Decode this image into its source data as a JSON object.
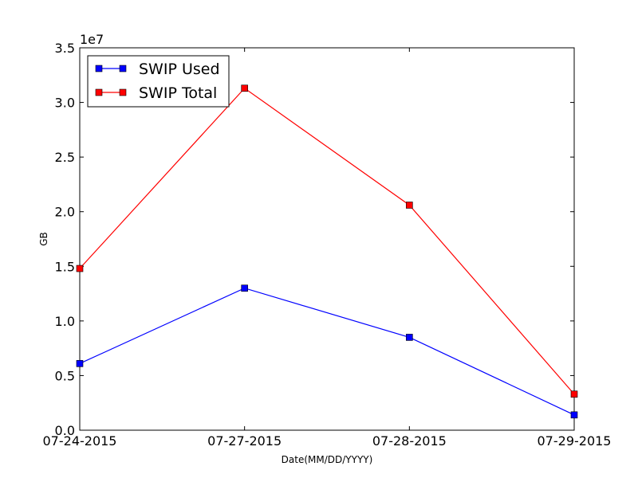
{
  "chart_data": {
    "type": "line",
    "categories": [
      "07-24-2015",
      "07-27-2015",
      "07-28-2015",
      "07-29-2015"
    ],
    "series": [
      {
        "name": "SWIP Used",
        "color": "#0000ff",
        "marker": "square",
        "values": [
          6100000,
          13000000,
          8500000,
          1400000
        ]
      },
      {
        "name": "SWIP Total",
        "color": "#ff0000",
        "marker": "square",
        "values": [
          14800000,
          31300000,
          20600000,
          3300000
        ]
      }
    ],
    "xlabel": "Date(MM/DD/YYYY)",
    "ylabel": "GB",
    "ylim": [
      0,
      35000000
    ],
    "yticks": [
      0,
      5000000,
      10000000,
      15000000,
      20000000,
      25000000,
      30000000,
      35000000
    ],
    "ytick_labels": [
      "0.0",
      "0.5",
      "1.0",
      "1.5",
      "2.0",
      "2.5",
      "3.0",
      "3.5"
    ],
    "y_offset_label": "1e7",
    "grid": false,
    "legend_position": "top-left"
  }
}
